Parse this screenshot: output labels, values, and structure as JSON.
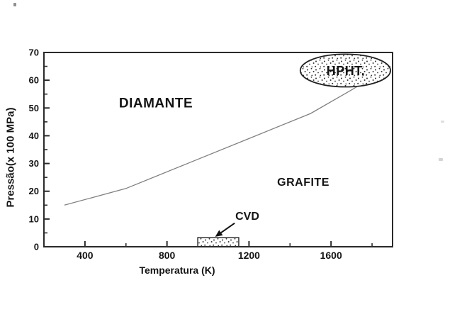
{
  "figure": {
    "background_color": "#ffffff",
    "axis_color": "#2a2a2a",
    "curve_color": "#808080",
    "text_color": "#141414",
    "stipple_dot_color": "#333333"
  },
  "chart_data": {
    "type": "line",
    "title": "",
    "xlabel": "Temperatura (K)",
    "ylabel": "Pressão(x 100 MPa)",
    "xlim": [
      200,
      1900
    ],
    "ylim": [
      0,
      70
    ],
    "grid": false,
    "legend": "none",
    "x_major_ticks": [
      400,
      800,
      1200,
      1600
    ],
    "x_minor_ticks": [
      600,
      1000,
      1400,
      1800
    ],
    "y_major_ticks": [
      0,
      10,
      20,
      30,
      40,
      50,
      60,
      70
    ],
    "y_minor_ticks": [
      5,
      15,
      25,
      35,
      45,
      55,
      65
    ],
    "series": [
      {
        "name": "diamante-grafite-phase-boundary",
        "x": [
          300,
          600,
          900,
          1200,
          1500,
          1700,
          1890
        ],
        "y": [
          15,
          21,
          30,
          39,
          48,
          56.5,
          65
        ]
      }
    ],
    "annotations": {
      "diamante": {
        "label": "DIAMANTE",
        "x": 750,
        "y": 52
      },
      "grafite": {
        "label": "GRAFITE",
        "x": 1460,
        "y": 23
      },
      "cvd": {
        "label": "CVD",
        "label_x": 1190,
        "label_y": 10.5,
        "box_x_range": [
          950,
          1150
        ],
        "box_y_range": [
          0,
          3.3
        ],
        "arrow_from": [
          1130,
          8.5
        ],
        "arrow_to": [
          1035,
          3.6
        ]
      },
      "hpht": {
        "label": "HPHT.",
        "ellipse_cx": 1670,
        "ellipse_cy": 63.5,
        "ellipse_rx": 220,
        "ellipse_ry": 5.9
      }
    }
  }
}
